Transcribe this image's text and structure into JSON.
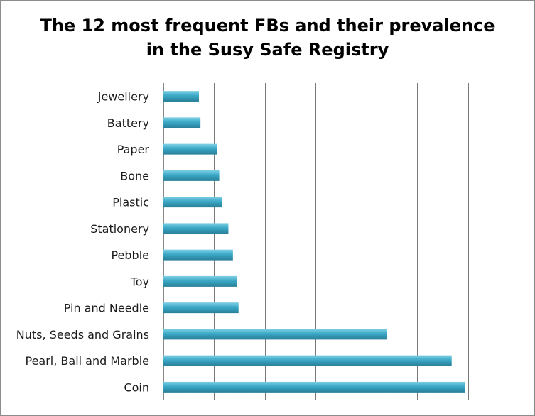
{
  "chart_data": {
    "type": "bar",
    "orientation": "horizontal",
    "title": "The 12 most frequent FBs and their prevalence\nin the Susy Safe Registry",
    "xlabel": "",
    "ylabel": "",
    "categories": [
      "Jewellery",
      "Battery",
      "Paper",
      "Bone",
      "Plastic",
      "Stationery",
      "Pebble",
      "Toy",
      "Pin and Needle",
      "Nuts, Seeds and Grains",
      "Pearl, Ball and Marble",
      "Coin"
    ],
    "values": [
      0.7,
      0.73,
      1.05,
      1.1,
      1.15,
      1.28,
      1.37,
      1.45,
      1.48,
      4.4,
      5.68,
      5.95
    ],
    "xlim": [
      0,
      7
    ],
    "gridlines": 7,
    "grid": true,
    "legend": "none",
    "bar_color": "#3aa8c6",
    "bar_highlight": "#7fd0e4",
    "bar_shadow": "#2a7f98"
  }
}
